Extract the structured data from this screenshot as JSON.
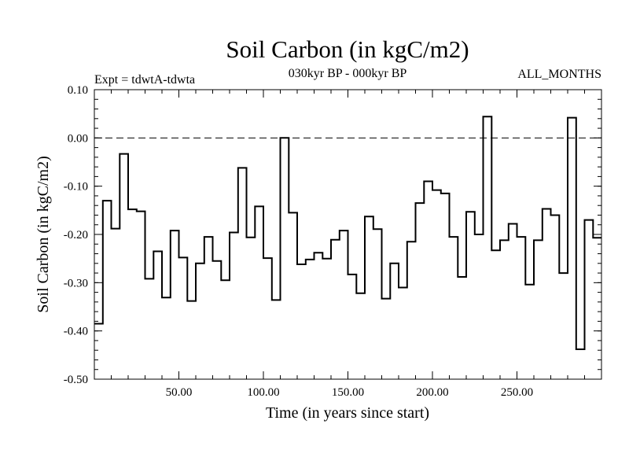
{
  "chart_data": {
    "type": "line",
    "step": true,
    "title": "Soil Carbon (in kgC/m2)",
    "subtitle": "030kyr BP - 000kyr BP",
    "left_note": "Expt = tdwtA-tdwta",
    "right_note": "ALL_MONTHS",
    "xlabel": "Time (in years since start)",
    "ylabel": "Soil Carbon (in kgC/m2)",
    "xlim": [
      0,
      300
    ],
    "ylim": [
      -0.5,
      0.1
    ],
    "x_ticks": [
      50,
      100,
      150,
      200,
      250
    ],
    "x_tick_labels": [
      "50.00",
      "100.00",
      "150.00",
      "200.00",
      "250.00"
    ],
    "y_ticks": [
      -0.5,
      -0.4,
      -0.3,
      -0.2,
      -0.1,
      0.0,
      0.1
    ],
    "y_tick_labels": [
      "-0.50",
      "-0.40",
      "-0.30",
      "-0.20",
      "-0.10",
      "0.00",
      "0.10"
    ],
    "reference_line": 0.0,
    "x_step": 5,
    "series": [
      {
        "name": "Soil Carbon",
        "values": [
          -0.385,
          -0.13,
          -0.188,
          -0.033,
          -0.148,
          -0.152,
          -0.292,
          -0.235,
          -0.331,
          -0.192,
          -0.248,
          -0.338,
          -0.26,
          -0.205,
          -0.255,
          -0.295,
          -0.196,
          -0.062,
          -0.206,
          -0.142,
          -0.249,
          -0.336,
          0.0,
          -0.155,
          -0.262,
          -0.252,
          -0.238,
          -0.25,
          -0.211,
          -0.192,
          -0.283,
          -0.322,
          -0.163,
          -0.189,
          -0.333,
          -0.26,
          -0.31,
          -0.215,
          -0.135,
          -0.09,
          -0.108,
          -0.115,
          -0.205,
          -0.288,
          -0.153,
          -0.2,
          0.044,
          -0.233,
          -0.212,
          -0.178,
          -0.205,
          -0.304,
          -0.212,
          -0.147,
          -0.16,
          -0.28,
          0.042,
          -0.438,
          -0.17,
          -0.207
        ]
      }
    ]
  }
}
